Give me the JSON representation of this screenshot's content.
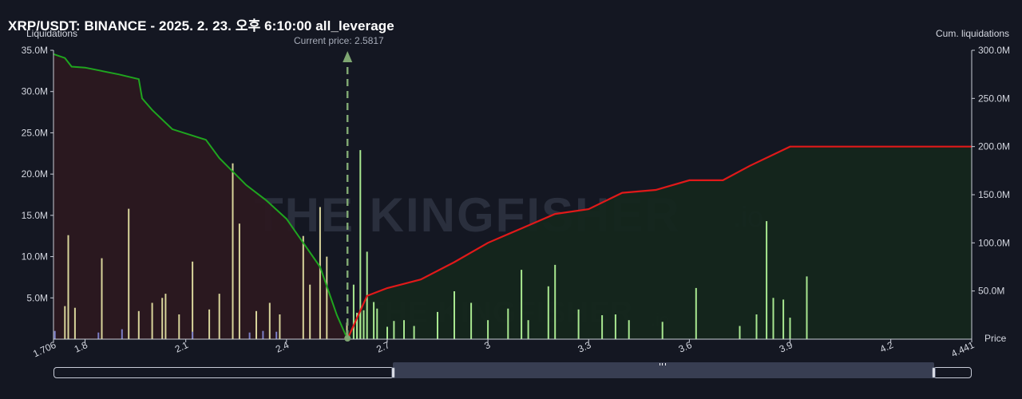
{
  "header": {
    "title": "XRP/USDT: BINANCE - 2025. 2. 23. 오후 6:10:00 all_leverage",
    "left_axis_label": "Liquidations",
    "right_axis_label": "Cum. liquidations",
    "price_axis_label": "Price",
    "current_price_label": "Current price: 2.5817"
  },
  "watermark": {
    "brand": "THE KINGFISHER",
    "suffix": ".io"
  },
  "colors": {
    "background": "#141722",
    "long_line": "#1fa51f",
    "short_line": "#e01919",
    "long_fill": "#2b1820",
    "short_fill": "#14261c",
    "current_price_marker": "#7fa772",
    "bar_long": "#d8d49a",
    "bar_short": "#a8e890",
    "bar_small": "#7c7fc8"
  },
  "chart_data": {
    "type": "bar",
    "current_price": 2.5817,
    "xlim": [
      1.706,
      4.441
    ],
    "ylim_left": [
      0,
      35000000
    ],
    "ylim_right": [
      0,
      300000000
    ],
    "x_ticks": [
      "1.706",
      "1.8",
      "2.1",
      "2.4",
      "2.7",
      "3",
      "3.3",
      "3.6",
      "3.9",
      "4.2",
      "4.441"
    ],
    "y_ticks_left": [
      "5.0M",
      "10.0M",
      "15.0M",
      "20.0M",
      "25.0M",
      "30.0M",
      "35.0M"
    ],
    "y_ticks_right": [
      "50.0M",
      "100.0M",
      "150.0M",
      "200.0M",
      "250.0M",
      "300.0M"
    ],
    "grid": false,
    "series": [
      {
        "name": "",
        "kind": "cumulative_long",
        "points": [
          [
            1.706,
            296
          ],
          [
            1.74,
            292
          ],
          [
            1.76,
            283
          ],
          [
            1.8,
            282
          ],
          [
            1.9,
            275
          ],
          [
            1.96,
            270
          ],
          [
            1.97,
            250
          ],
          [
            2.0,
            238
          ],
          [
            2.06,
            218
          ],
          [
            2.16,
            207
          ],
          [
            2.2,
            188
          ],
          [
            2.28,
            160
          ],
          [
            2.34,
            144
          ],
          [
            2.4,
            125
          ],
          [
            2.44,
            105
          ],
          [
            2.5,
            75
          ],
          [
            2.55,
            25
          ],
          [
            2.5817,
            0
          ]
        ]
      },
      {
        "name": "",
        "kind": "cumulative_short",
        "points": [
          [
            2.5817,
            0
          ],
          [
            2.64,
            45
          ],
          [
            2.7,
            53
          ],
          [
            2.8,
            62
          ],
          [
            2.9,
            80
          ],
          [
            3.0,
            100
          ],
          [
            3.1,
            115
          ],
          [
            3.2,
            130
          ],
          [
            3.3,
            135
          ],
          [
            3.4,
            152
          ],
          [
            3.5,
            155
          ],
          [
            3.6,
            165
          ],
          [
            3.7,
            165
          ],
          [
            3.78,
            180
          ],
          [
            3.9,
            200
          ],
          [
            4.441,
            200
          ]
        ]
      },
      {
        "name": "",
        "kind": "bars_long",
        "values": [
          [
            1.74,
            4.0
          ],
          [
            1.75,
            12.6
          ],
          [
            1.77,
            3.8
          ],
          [
            1.85,
            9.8
          ],
          [
            1.93,
            15.8
          ],
          [
            1.96,
            3.4
          ],
          [
            2.0,
            4.4
          ],
          [
            2.03,
            5.0
          ],
          [
            2.04,
            5.5
          ],
          [
            2.08,
            3.0
          ],
          [
            2.12,
            9.4
          ],
          [
            2.17,
            3.6
          ],
          [
            2.2,
            5.5
          ],
          [
            2.24,
            21.3
          ],
          [
            2.26,
            14.0
          ],
          [
            2.31,
            3.4
          ],
          [
            2.35,
            4.4
          ],
          [
            2.38,
            3.0
          ],
          [
            2.45,
            12.5
          ],
          [
            2.47,
            6.6
          ],
          [
            2.5,
            16.0
          ],
          [
            2.52,
            10.0
          ],
          [
            2.58,
            2.0
          ],
          [
            2.61,
            3.0
          ],
          [
            2.62,
            3.6
          ]
        ]
      },
      {
        "name": "",
        "kind": "bars_short",
        "values": [
          [
            2.6,
            6.6
          ],
          [
            2.61,
            3.2
          ],
          [
            2.62,
            22.9
          ],
          [
            2.63,
            3.5
          ],
          [
            2.64,
            10.6
          ],
          [
            2.66,
            4.5
          ],
          [
            2.67,
            3.7
          ],
          [
            2.7,
            1.5
          ],
          [
            2.72,
            2.2
          ],
          [
            2.75,
            2.3
          ],
          [
            2.78,
            1.6
          ],
          [
            2.85,
            3.3
          ],
          [
            2.9,
            5.8
          ],
          [
            2.95,
            4.4
          ],
          [
            3.0,
            2.3
          ],
          [
            3.06,
            3.7
          ],
          [
            3.1,
            8.4
          ],
          [
            3.12,
            2.3
          ],
          [
            3.18,
            6.4
          ],
          [
            3.2,
            9.0
          ],
          [
            3.27,
            3.6
          ],
          [
            3.34,
            2.9
          ],
          [
            3.38,
            3.0
          ],
          [
            3.42,
            2.3
          ],
          [
            3.52,
            2.1
          ],
          [
            3.62,
            6.2
          ],
          [
            3.75,
            1.6
          ],
          [
            3.8,
            3.0
          ],
          [
            3.83,
            14.3
          ],
          [
            3.85,
            5.0
          ],
          [
            3.88,
            4.8
          ],
          [
            3.9,
            2.6
          ],
          [
            3.95,
            7.6
          ]
        ]
      },
      {
        "name": "",
        "kind": "bars_small",
        "values": [
          [
            1.71,
            1.0
          ],
          [
            1.84,
            0.8
          ],
          [
            1.91,
            1.2
          ],
          [
            2.12,
            0.9
          ],
          [
            2.29,
            0.8
          ],
          [
            2.33,
            1.0
          ],
          [
            2.37,
            0.9
          ]
        ]
      }
    ]
  }
}
